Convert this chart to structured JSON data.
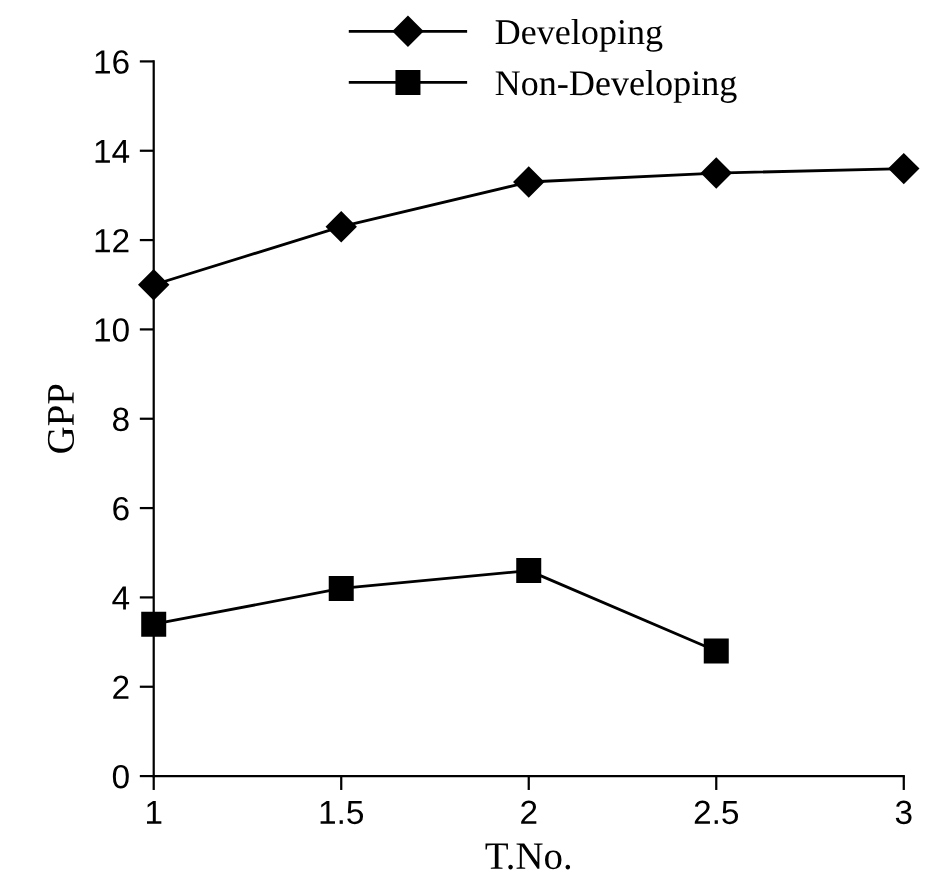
{
  "chart_data": {
    "type": "line",
    "xlabel": "T.No.",
    "ylabel": "GPP",
    "x": [
      1,
      1.5,
      2,
      2.5,
      3
    ],
    "series": [
      {
        "name": "Developing",
        "color": "#000000",
        "marker": "diamond",
        "values": [
          11.0,
          12.3,
          13.3,
          13.5,
          13.6
        ]
      },
      {
        "name": "Non-Developing",
        "color": "#000000",
        "marker": "square",
        "values": [
          3.4,
          4.2,
          4.6,
          2.8,
          null
        ]
      }
    ],
    "xlim": [
      1,
      3
    ],
    "xticks": [
      1,
      1.5,
      2,
      2.5,
      3
    ],
    "ylim": [
      0,
      16
    ],
    "yticks": [
      0,
      2,
      4,
      6,
      8,
      10,
      12,
      14,
      16
    ],
    "grid": false,
    "legend": "top",
    "line_style": "solid"
  }
}
